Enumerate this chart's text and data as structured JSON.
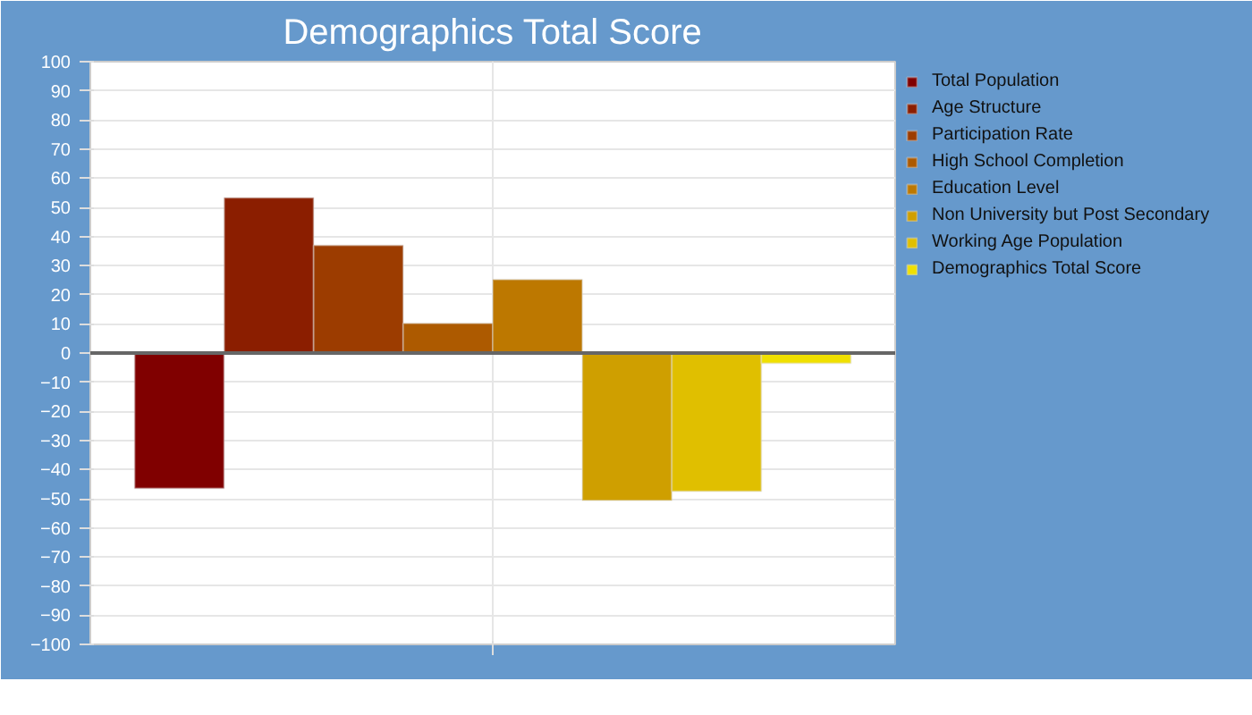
{
  "chart_data": {
    "type": "bar",
    "title": "Demographics Total Score",
    "categories": [
      null
    ],
    "series": [
      {
        "name": "Total Population",
        "color": "#800000",
        "values": [
          -46.5
        ]
      },
      {
        "name": "Age Structure",
        "color": "#8b1e00",
        "values": [
          53.3
        ]
      },
      {
        "name": "Participation Rate",
        "color": "#9c3c00",
        "values": [
          37
        ]
      },
      {
        "name": "High School Completion",
        "color": "#ad5a00",
        "values": [
          10.2
        ]
      },
      {
        "name": "Education Level",
        "color": "#bd7800",
        "values": [
          25.2
        ]
      },
      {
        "name": "Non University but Post Secondary",
        "color": "#cf9f00",
        "values": [
          -50.6
        ]
      },
      {
        "name": "Working Age Population",
        "color": "#e0bf00",
        "values": [
          -47.5
        ]
      },
      {
        "name": "Demographics Total Score",
        "color": "#f0e000",
        "values": [
          -3.5
        ]
      }
    ],
    "ylim": [
      -100,
      100
    ],
    "yticks": [
      -100,
      -90,
      -80,
      -70,
      -60,
      -50,
      -40,
      -30,
      -20,
      -10,
      0,
      10,
      20,
      30,
      40,
      50,
      60,
      70,
      80,
      90,
      100
    ],
    "grid": true,
    "legend": "top right"
  }
}
